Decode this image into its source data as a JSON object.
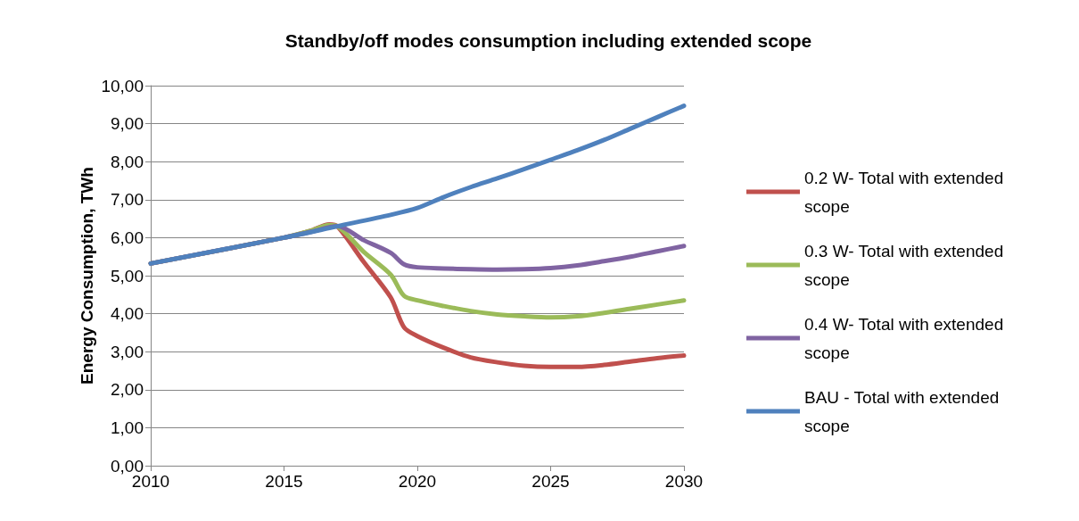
{
  "chart_data": {
    "type": "line",
    "title": "Standby/off modes consumption including extended scope",
    "ylabel": "Energy Consumption, TWh",
    "xlim": [
      2010,
      2030
    ],
    "xticks": [
      2010,
      2015,
      2020,
      2025,
      2030
    ],
    "ylim": [
      0,
      10
    ],
    "yticks": [
      {
        "value": 0,
        "label": "0,00"
      },
      {
        "value": 1,
        "label": "1,00"
      },
      {
        "value": 2,
        "label": "2,00"
      },
      {
        "value": 3,
        "label": "3,00"
      },
      {
        "value": 4,
        "label": "4,00"
      },
      {
        "value": 5,
        "label": "5,00"
      },
      {
        "value": 6,
        "label": "6,00"
      },
      {
        "value": 7,
        "label": "7,00"
      },
      {
        "value": 8,
        "label": "8,00"
      },
      {
        "value": 9,
        "label": "9,00"
      },
      {
        "value": 10,
        "label": "10,00"
      }
    ],
    "grid": "y",
    "legend": "right",
    "marker": "none",
    "line_style": "solid",
    "series": [
      {
        "name": "0.2 W- Total with extended scope",
        "color": "#c0504d",
        "x": [
          2010,
          2015,
          2016,
          2016.7,
          2017,
          2018,
          2019,
          2019.5,
          2020,
          2021,
          2022,
          2023,
          2024,
          2025,
          2026,
          2027,
          2028,
          2029,
          2030
        ],
        "values": [
          5.32,
          6.0,
          6.18,
          6.35,
          6.3,
          5.35,
          4.43,
          3.64,
          3.41,
          3.1,
          2.85,
          2.72,
          2.63,
          2.6,
          2.6,
          2.65,
          2.74,
          2.83,
          2.9
        ]
      },
      {
        "name": "0.3 W- Total with extended scope",
        "color": "#9bbb59",
        "x": [
          2010,
          2015,
          2016,
          2016.7,
          2017,
          2018,
          2019,
          2019.5,
          2020,
          2021,
          2022,
          2023,
          2024,
          2025,
          2026,
          2027,
          2028,
          2029,
          2030
        ],
        "values": [
          5.32,
          6.0,
          6.18,
          6.33,
          6.3,
          5.62,
          5.03,
          4.47,
          4.35,
          4.2,
          4.07,
          3.98,
          3.93,
          3.9,
          3.93,
          4.02,
          4.13,
          4.24,
          4.35
        ]
      },
      {
        "name": "0.4 W- Total with extended scope",
        "color": "#8064a2",
        "x": [
          2010,
          2015,
          2016,
          2017,
          2018,
          2019,
          2019.5,
          2020,
          2021,
          2022,
          2023,
          2024,
          2025,
          2026,
          2027,
          2028,
          2029,
          2030
        ],
        "values": [
          5.32,
          6.0,
          6.15,
          6.3,
          5.93,
          5.6,
          5.3,
          5.22,
          5.19,
          5.17,
          5.16,
          5.17,
          5.2,
          5.27,
          5.38,
          5.5,
          5.64,
          5.78
        ]
      },
      {
        "name": "BAU - Total with extended scope",
        "color": "#4f81bd",
        "x": [
          2010,
          2015,
          2017,
          2019,
          2020,
          2021,
          2022,
          2023,
          2024,
          2025,
          2026,
          2027,
          2028,
          2029,
          2030
        ],
        "values": [
          5.32,
          6.0,
          6.3,
          6.6,
          6.78,
          7.07,
          7.33,
          7.56,
          7.8,
          8.05,
          8.3,
          8.57,
          8.87,
          9.17,
          9.47
        ]
      }
    ]
  }
}
